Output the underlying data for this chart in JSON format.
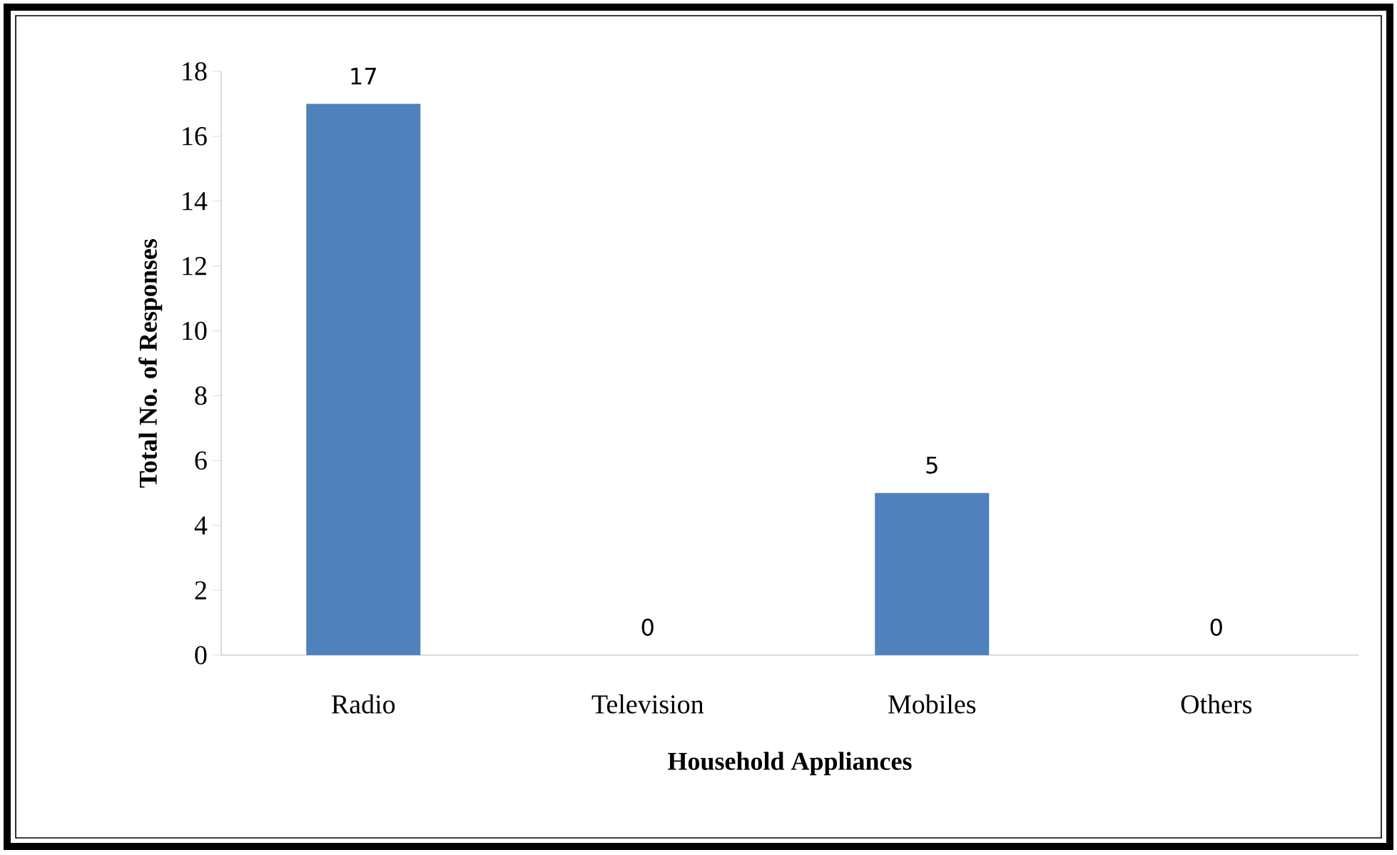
{
  "chart_data": {
    "type": "bar",
    "xlabel": "Household Appliances",
    "ylabel": "Total No. of Responses",
    "categories": [
      "Radio",
      "Television",
      "Mobiles",
      "Others"
    ],
    "values": [
      17,
      0,
      5,
      0
    ],
    "color": "#4f81bd",
    "ylim": [
      0,
      18
    ],
    "yticks": [
      0,
      2,
      4,
      6,
      8,
      10,
      12,
      14,
      16,
      18
    ],
    "data_labels": true,
    "grid": false
  }
}
